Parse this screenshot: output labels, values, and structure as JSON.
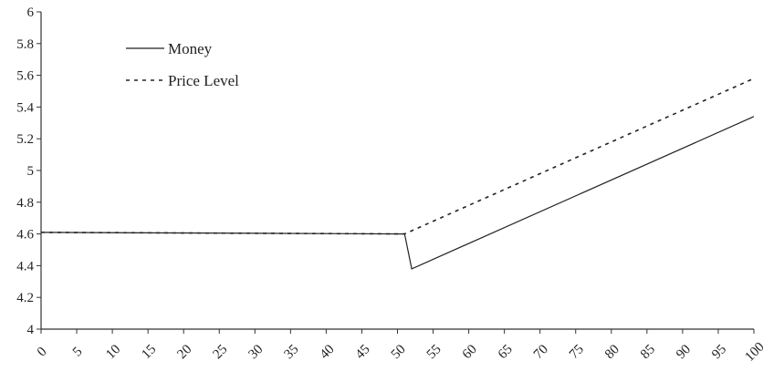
{
  "chart_data": {
    "type": "line",
    "title": "",
    "xlabel": "",
    "ylabel": "",
    "xlim": [
      0,
      100
    ],
    "ylim": [
      4,
      6
    ],
    "grid": false,
    "legend_position": "top-left",
    "y_ticks": [
      "4",
      "4.2",
      "4.4",
      "4.6",
      "4.8",
      "5",
      "5.2",
      "5.4",
      "5.6",
      "5.8",
      "6"
    ],
    "x_ticks": [
      "0",
      "5",
      "10",
      "15",
      "20",
      "25",
      "30",
      "35",
      "40",
      "45",
      "50",
      "55",
      "60",
      "65",
      "70",
      "75",
      "80",
      "85",
      "90",
      "95",
      "100"
    ],
    "series": [
      {
        "name": "Money",
        "style": "solid",
        "color": "#222222",
        "points": [
          [
            0,
            4.61
          ],
          [
            51,
            4.6
          ],
          [
            52,
            4.38
          ],
          [
            100,
            5.34
          ]
        ]
      },
      {
        "name": "Price Level",
        "style": "dashed",
        "color": "#222222",
        "points": [
          [
            0,
            4.61
          ],
          [
            51,
            4.6
          ],
          [
            100,
            5.58
          ]
        ]
      }
    ]
  }
}
